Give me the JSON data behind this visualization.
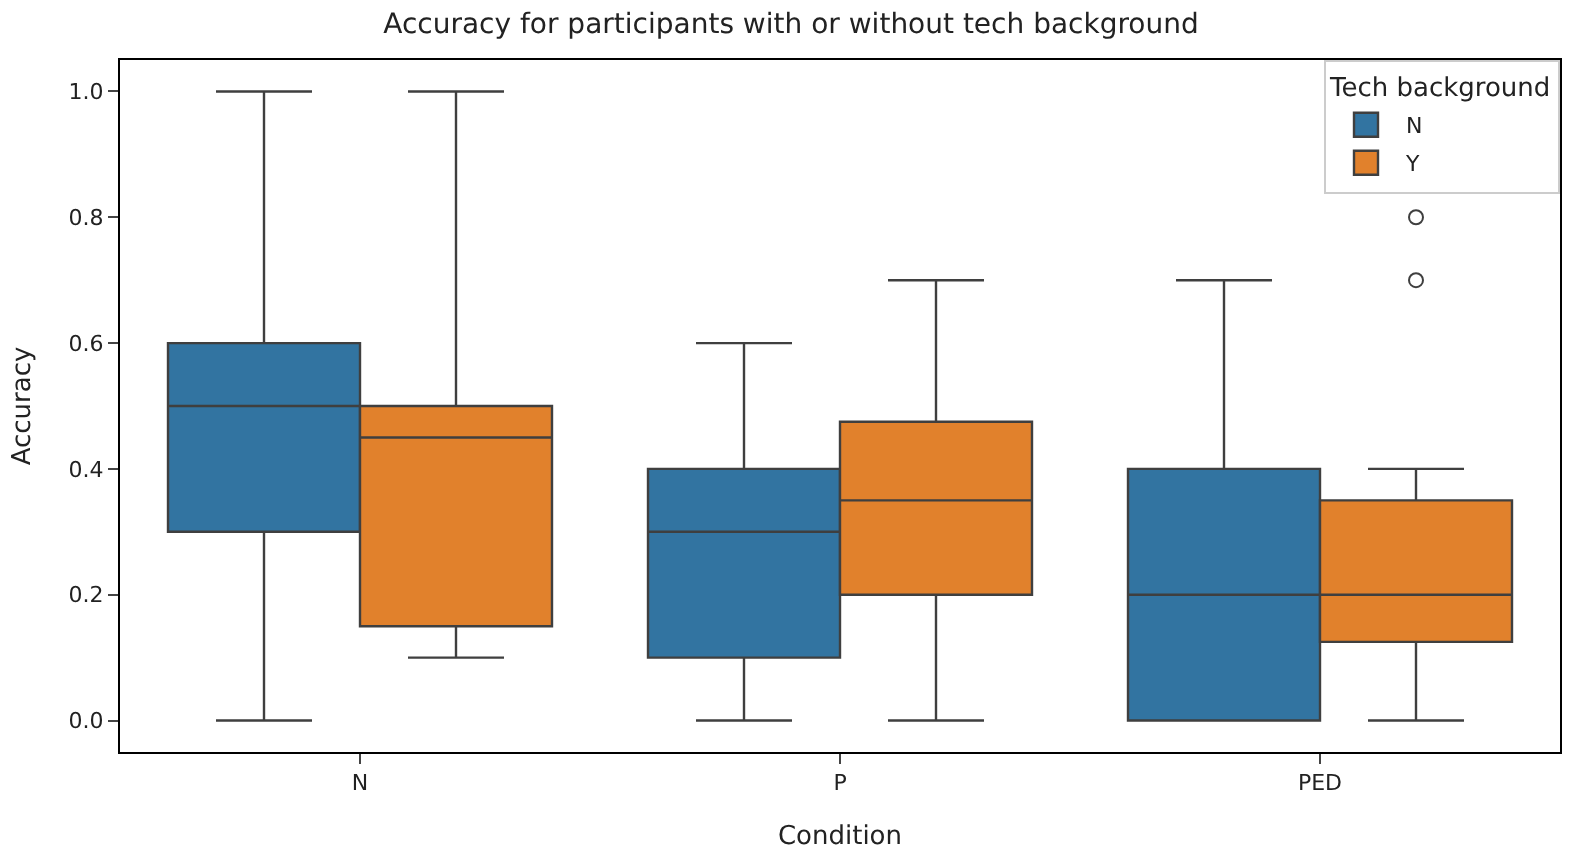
{
  "chart_data": {
    "type": "box",
    "title": "Accuracy for participants with or without tech background",
    "xlabel": "Condition",
    "ylabel": "Accuracy",
    "legend_title": "Tech background",
    "categories": [
      "N",
      "P",
      "PED"
    ],
    "series": [
      {
        "name": "N",
        "color": "#3274a1",
        "boxes": [
          {
            "low": 0,
            "q1": 0.3,
            "median": 0.5,
            "q3": 0.6,
            "high": 1.0
          },
          {
            "low": 0,
            "q1": 0.1,
            "median": 0.3,
            "q3": 0.4,
            "high": 0.6
          },
          {
            "low": 0,
            "q1": 0,
            "median": 0.2,
            "q3": 0.4,
            "high": 0.7
          }
        ]
      },
      {
        "name": "Y",
        "color": "#e1812c",
        "boxes": [
          {
            "low": 0.1,
            "q1": 0.15,
            "median": 0.45,
            "q3": 0.5,
            "high": 1.0
          },
          {
            "low": 0,
            "q1": 0.2,
            "median": 0.35,
            "q3": 0.475,
            "high": 0.7
          },
          {
            "low": 0,
            "q1": 0.125,
            "median": 0.2,
            "q3": 0.35,
            "high": 0.4,
            "outliers": [
              0.7,
              0.8
            ]
          }
        ]
      }
    ],
    "ylim": [
      -0.05,
      1.05
    ],
    "yticks": [
      {
        "value": 0,
        "label": "0.0"
      },
      {
        "value": 0.2,
        "label": "0.2"
      },
      {
        "value": 0.4,
        "label": "0.4"
      },
      {
        "value": 0.6,
        "label": "0.6"
      },
      {
        "value": 0.8,
        "label": "0.8"
      },
      {
        "value": 1,
        "label": "1.0"
      }
    ],
    "legend": "top right"
  }
}
